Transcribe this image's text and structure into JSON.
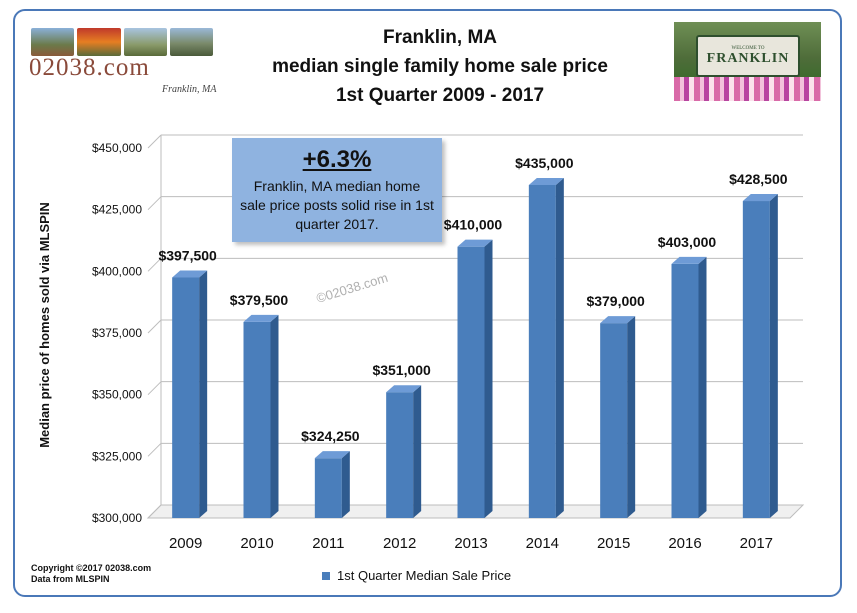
{
  "logo": {
    "site": "02038.com",
    "town": "Franklin, MA"
  },
  "sign": {
    "small_text": "WELCOME TO",
    "name": "FRANKLIN"
  },
  "title_lines": [
    "Franklin, MA",
    "median single family home sale price",
    "1st Quarter  2009 - 2017"
  ],
  "callout": {
    "percent": "+6.3%",
    "text": "Franklin, MA median home sale price posts solid rise in 1st quarter 2017."
  },
  "watermark": "©02038.com",
  "copyright": [
    "Copyright ©2017 02038.com",
    "Data from MLSPIN"
  ],
  "colors": {
    "bar": "#4a7ebb",
    "bar_side": "#2f5b8f",
    "bar_top": "#6e9bd6",
    "frame": "#4a78b8",
    "callout": "#8fb3e0"
  },
  "chart_data": {
    "type": "bar",
    "categories": [
      "2009",
      "2010",
      "2011",
      "2012",
      "2013",
      "2014",
      "2015",
      "2016",
      "2017"
    ],
    "series": [
      {
        "name": "1st Quarter Median Sale Price",
        "values": [
          397500,
          379500,
          324250,
          351000,
          410000,
          435000,
          379000,
          403000,
          428500
        ]
      }
    ],
    "data_labels": [
      "$397,500",
      "$379,500",
      "$324,250",
      "$351,000",
      "$410,000",
      "$435,000",
      "$379,000",
      "$403,000",
      "$428,500"
    ],
    "ylabel": "Median price of homes sold via MLSPIN",
    "yticks": [
      "$300,000",
      "$325,000",
      "$350,000",
      "$375,000",
      "$400,000",
      "$425,000",
      "$450,000"
    ],
    "ylim": [
      300000,
      450000
    ],
    "grid": true,
    "legend": "bottom"
  }
}
